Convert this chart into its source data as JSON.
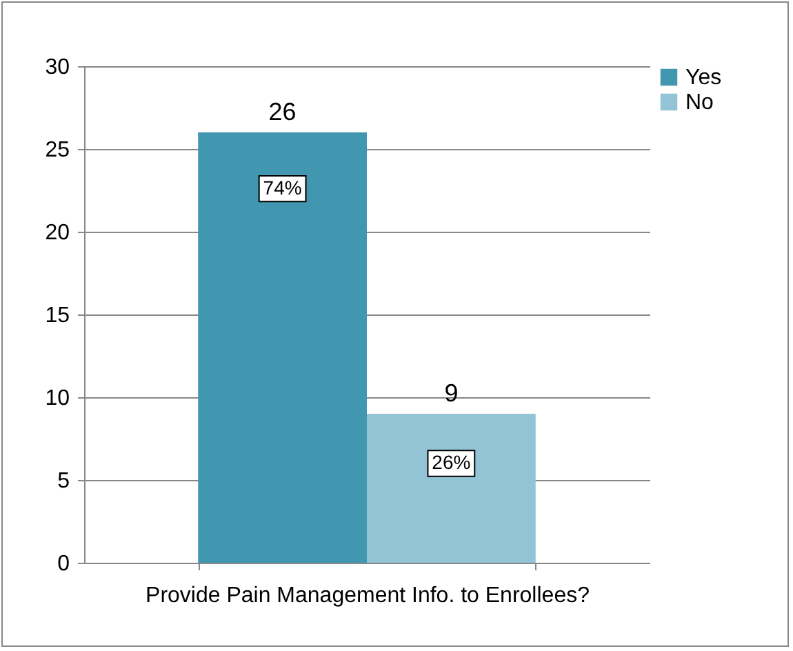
{
  "chart_data": {
    "type": "bar",
    "xlabel": "Provide Pain Management Info. to Enrollees?",
    "categories": [
      null
    ],
    "series": [
      {
        "name": "Yes",
        "color": "#4197b0",
        "values": [
          26
        ]
      },
      {
        "name": "No",
        "color": "#93c4d5",
        "values": [
          9
        ]
      }
    ],
    "ylim": [
      0,
      30
    ],
    "yticks": [
      0,
      5,
      10,
      15,
      20,
      25,
      30
    ],
    "grid": "y",
    "legend": "right",
    "data_labels": true,
    "annotations": [
      {
        "text": "74%",
        "y": 22.6
      },
      {
        "text": "26%",
        "y": 6
      }
    ]
  }
}
